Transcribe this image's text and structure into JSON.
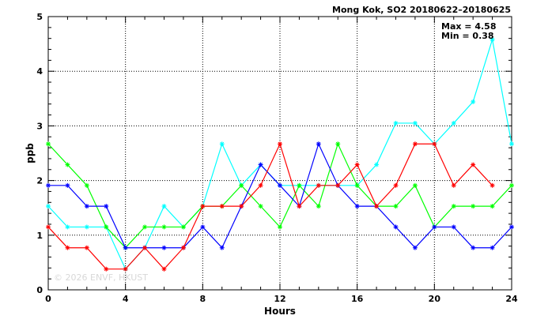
{
  "chart_data": {
    "type": "line",
    "title": "Mong Kok, SO2 20180622–20180625",
    "xlabel": "Hours",
    "ylabel": "ppb",
    "xlim": [
      0,
      24
    ],
    "ylim": [
      0,
      5
    ],
    "xticks": [
      "0",
      "4",
      "8",
      "12",
      "16",
      "20",
      "24"
    ],
    "yticks": [
      "0",
      "1",
      "2",
      "3",
      "4",
      "5"
    ],
    "grid": true,
    "annotations": [
      "Max = 4.58",
      "Min = 0.38"
    ],
    "watermark": "© 2026 ENVF, HKUST",
    "x": [
      0,
      1,
      2,
      3,
      4,
      5,
      6,
      7,
      8,
      9,
      10,
      11,
      12,
      13,
      14,
      15,
      16,
      17,
      18,
      19,
      20,
      21,
      22,
      23,
      24
    ],
    "series": [
      {
        "color": "#00ffff",
        "values": [
          1.53,
          1.15,
          1.15,
          1.15,
          0.38,
          0.77,
          1.53,
          1.15,
          1.53,
          2.67,
          1.91,
          2.29,
          1.91,
          1.91,
          1.91,
          1.91,
          1.91,
          2.29,
          3.05,
          3.05,
          2.67,
          3.05,
          3.44,
          4.58,
          2.67
        ]
      },
      {
        "color": "#00ff00",
        "values": [
          2.67,
          2.29,
          1.91,
          1.15,
          0.77,
          1.15,
          1.15,
          1.15,
          1.53,
          1.53,
          1.91,
          1.53,
          1.15,
          1.91,
          1.53,
          2.67,
          1.91,
          1.53,
          1.53,
          1.91,
          1.15,
          1.53,
          1.53,
          1.53,
          1.91
        ]
      },
      {
        "color": "#0000ff",
        "values": [
          1.91,
          1.91,
          1.53,
          1.53,
          0.77,
          0.77,
          0.77,
          0.77,
          1.15,
          0.77,
          1.53,
          2.29,
          1.91,
          1.53,
          2.67,
          1.91,
          1.53,
          1.53,
          1.15,
          0.77,
          1.15,
          1.15,
          0.77,
          0.77,
          1.15
        ]
      },
      {
        "color": "#ff0000",
        "values": [
          1.15,
          0.77,
          0.77,
          0.38,
          0.38,
          0.77,
          0.38,
          0.77,
          1.53,
          1.53,
          1.53,
          1.91,
          2.67,
          1.53,
          1.91,
          1.91,
          2.29,
          1.53,
          1.91,
          2.67,
          2.67,
          1.91,
          2.29,
          1.91,
          null
        ]
      }
    ]
  }
}
